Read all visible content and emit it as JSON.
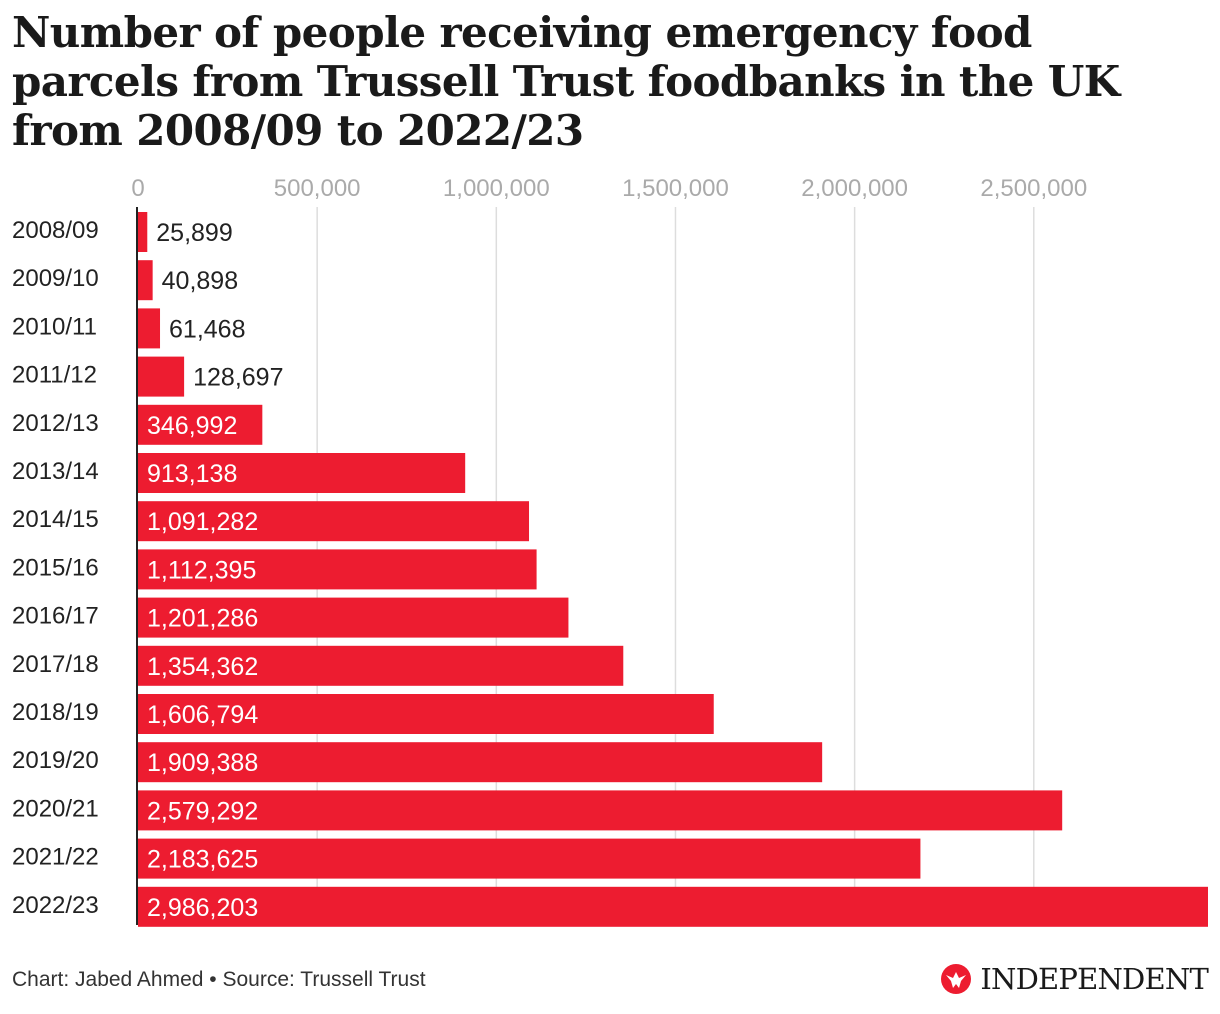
{
  "title": "Number of people receiving emergency food parcels from Trussell Trust foodbanks in the UK from 2008/09 to 2022/23",
  "footer": {
    "credit": "Chart: Jabed Ahmed • Source: Trussell Trust",
    "logo_text": "INDEPENDENT",
    "logo_icon": "eagle-icon"
  },
  "colors": {
    "bar": "#ed1c30",
    "grid": "#dddddd",
    "axis_line": "#222222",
    "tick_label": "#aaaaaa",
    "label_dark": "#222222",
    "label_light": "#ffffff"
  },
  "chart_data": {
    "type": "bar",
    "orientation": "horizontal",
    "title": "Number of people receiving emergency food parcels from Trussell Trust foodbanks in the UK from 2008/09 to 2022/23",
    "xlabel": "",
    "ylabel": "",
    "xlim": [
      0,
      2986203
    ],
    "xticks": [
      0,
      500000,
      1000000,
      1500000,
      2000000,
      2500000
    ],
    "xtick_labels": [
      "0",
      "500,000",
      "1,000,000",
      "1,500,000",
      "2,000,000",
      "2,500,000"
    ],
    "grid": true,
    "legend": "none",
    "categories": [
      "2008/09",
      "2009/10",
      "2010/11",
      "2011/12",
      "2012/13",
      "2013/14",
      "2014/15",
      "2015/16",
      "2016/17",
      "2017/18",
      "2018/19",
      "2019/20",
      "2020/21",
      "2021/22",
      "2022/23"
    ],
    "values": [
      25899,
      40898,
      61468,
      128697,
      346992,
      913138,
      1091282,
      1112395,
      1201286,
      1354362,
      1606794,
      1909388,
      2579292,
      2183625,
      2986203
    ],
    "data_labels": [
      "25,899",
      "40,898",
      "61,468",
      "128,697",
      "346,992",
      "913,138",
      "1,091,282",
      "1,112,395",
      "1,201,286",
      "1,354,362",
      "1,606,794",
      "1,909,388",
      "2,579,292",
      "2,183,625",
      "2,986,203"
    ]
  }
}
